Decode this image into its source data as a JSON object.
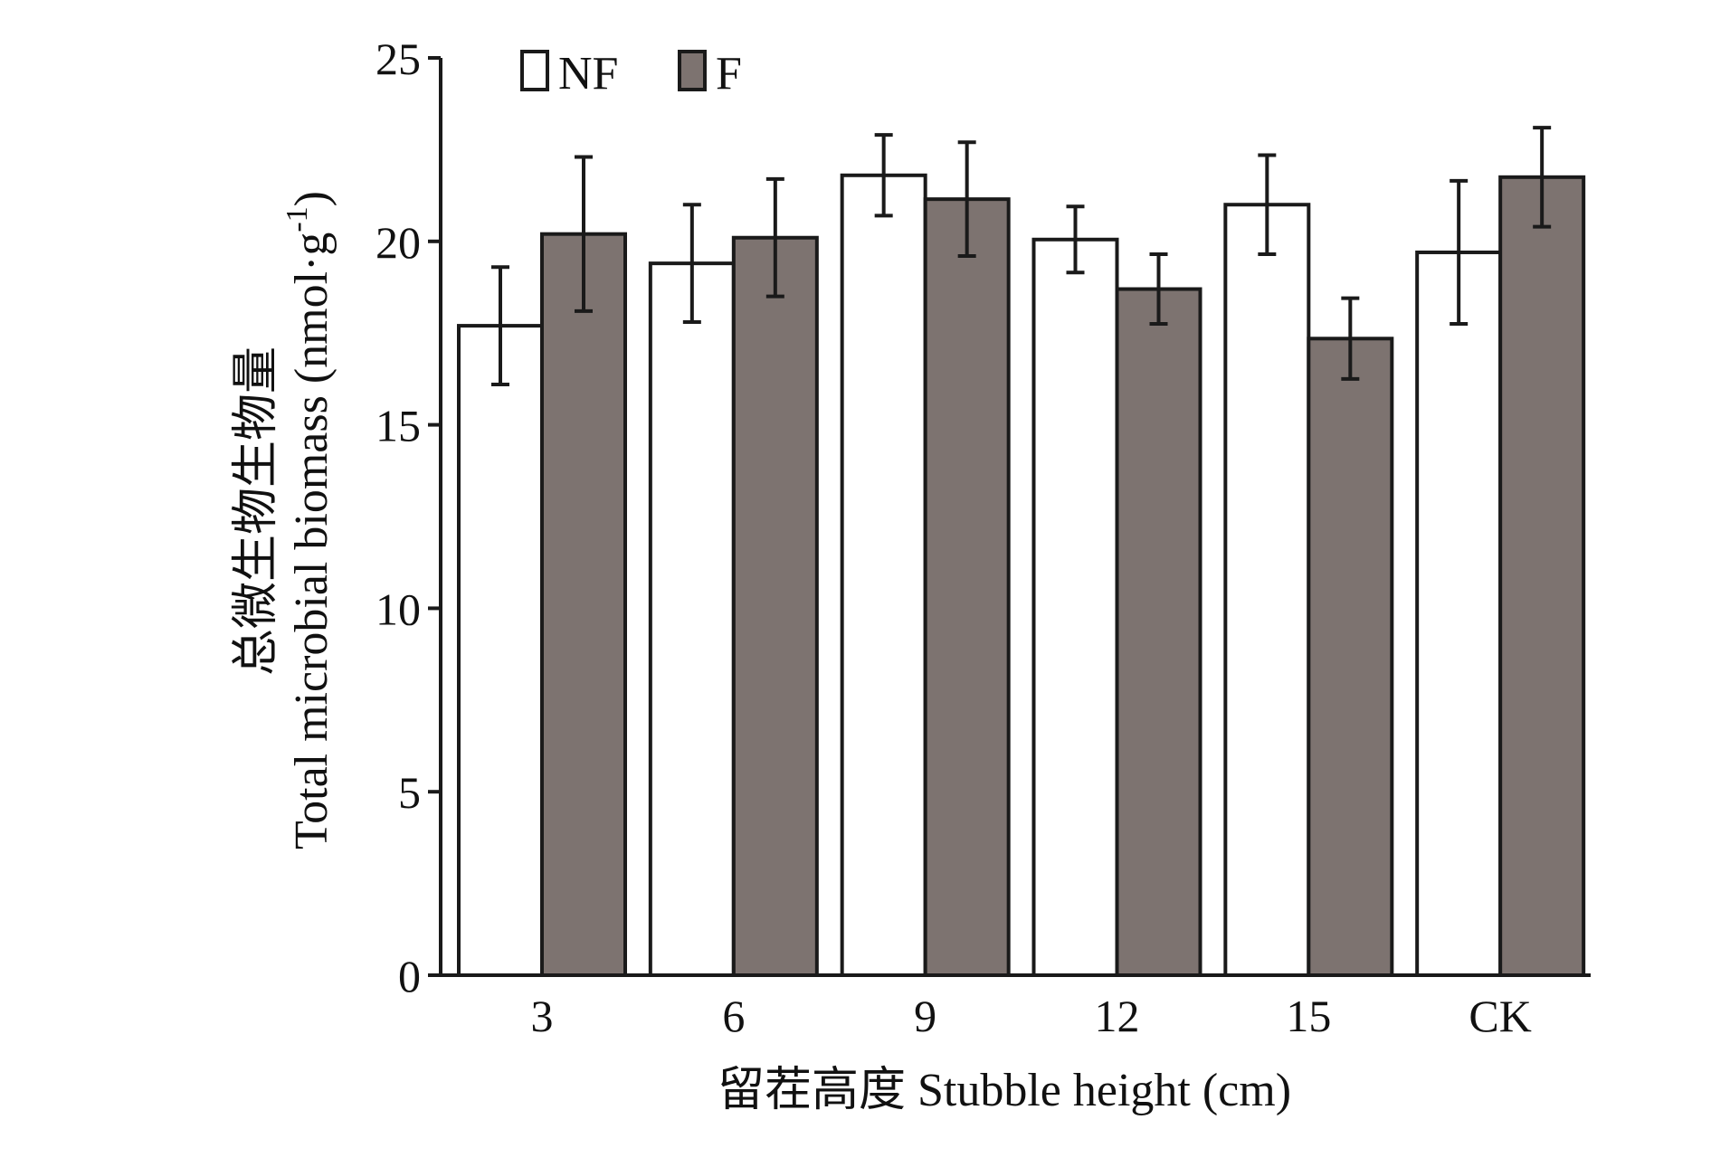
{
  "chart_data": {
    "type": "bar",
    "categories": [
      "3",
      "6",
      "9",
      "12",
      "15",
      "CK"
    ],
    "series": [
      {
        "name": "NF",
        "color": "#ffffff",
        "values": [
          17.7,
          19.4,
          21.8,
          20.05,
          21.0,
          19.7
        ],
        "errors": [
          1.6,
          1.6,
          1.1,
          0.9,
          1.35,
          1.95
        ]
      },
      {
        "name": "F",
        "color": "#7d7370",
        "values": [
          20.2,
          20.1,
          21.15,
          18.7,
          17.35,
          21.75
        ],
        "errors": [
          2.1,
          1.6,
          1.55,
          0.95,
          1.1,
          1.35
        ]
      }
    ],
    "xlabel": "留茬高度 Stubble height (cm)",
    "ylabel_cn": "总微生物生物量",
    "ylabel_en": "Total microbial biomass (nmol·g",
    "ylabel_sup": "-1",
    "ylabel_close": ")",
    "ylim": [
      0,
      25
    ],
    "yticks": [
      "0",
      "5",
      "10",
      "15",
      "20",
      "25"
    ],
    "grid": false,
    "legend_position": "top-left"
  }
}
